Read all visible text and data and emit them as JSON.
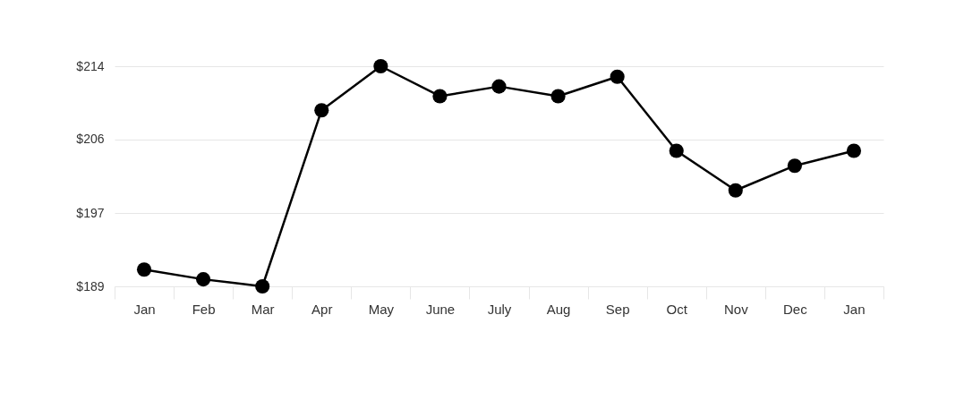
{
  "chart_data": {
    "type": "line",
    "categories": [
      "Jan",
      "Feb",
      "Mar",
      "Apr",
      "May",
      "June",
      "July",
      "Aug",
      "Sep",
      "Oct",
      "Nov",
      "Dec",
      "Jan"
    ],
    "series": [
      {
        "color": "#000000",
        "values": [
          190.9,
          189.8,
          189,
          209,
          214,
          210.6,
          211.7,
          210.6,
          212.8,
          204.4,
          199.9,
          202.7,
          204.4
        ]
      }
    ],
    "ylim": [
      189,
      214
    ],
    "yticks": [
      {
        "value": 189,
        "label": "$189"
      },
      {
        "value": 197.33,
        "label": "$197"
      },
      {
        "value": 205.67,
        "label": "$206"
      },
      {
        "value": 214,
        "label": "$214"
      }
    ],
    "grid": "y",
    "marker": "circle",
    "line_style": "solid"
  }
}
